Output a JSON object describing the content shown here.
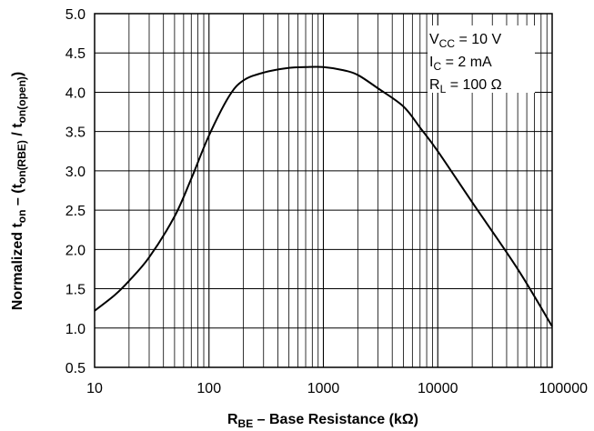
{
  "chart_data": {
    "type": "line",
    "xscale": "log",
    "xlim": [
      10,
      100000
    ],
    "ylim": [
      0.5,
      5.0
    ],
    "grid": true,
    "xticks": [
      10,
      100,
      1000,
      10000,
      100000
    ],
    "xtick_labels": [
      "10",
      "100",
      "1000",
      "10000",
      "100000"
    ],
    "yticks": [
      0.5,
      1.0,
      1.5,
      2.0,
      2.5,
      3.0,
      3.5,
      4.0,
      4.5,
      5.0
    ],
    "ytick_labels": [
      "0.5",
      "1.0",
      "1.5",
      "2.0",
      "2.5",
      "3.0",
      "3.5",
      "4.0",
      "4.5",
      "5.0"
    ],
    "xlabel": {
      "main": "R",
      "sub": "BE",
      "rest": " – Base Resistance (kΩ)"
    },
    "ylabel": {
      "p1": "Normalized t",
      "s1": "on",
      "p2": " – (t",
      "s2": "on(RBE)",
      "p3": " / t",
      "s3": "on(open)",
      "p4": ")"
    },
    "annotations": [
      {
        "main": "V",
        "sub": "CC",
        "rest": " = 10 V"
      },
      {
        "main": "I",
        "sub": "C",
        "rest": " = 2 mA"
      },
      {
        "main": "R",
        "sub": "L",
        "rest": " = 100 Ω"
      }
    ],
    "series": [
      {
        "x": [
          10,
          15,
          20,
          30,
          50,
          70,
          100,
          150,
          200,
          300,
          500,
          700,
          1000,
          1500,
          2000,
          3000,
          5000,
          7000,
          10000,
          20000,
          50000,
          100000
        ],
        "y": [
          1.22,
          1.42,
          1.6,
          1.9,
          2.42,
          2.9,
          3.45,
          3.95,
          4.15,
          4.25,
          4.31,
          4.32,
          4.32,
          4.28,
          4.22,
          4.05,
          3.82,
          3.55,
          3.25,
          2.6,
          1.75,
          1.02
        ]
      }
    ]
  }
}
